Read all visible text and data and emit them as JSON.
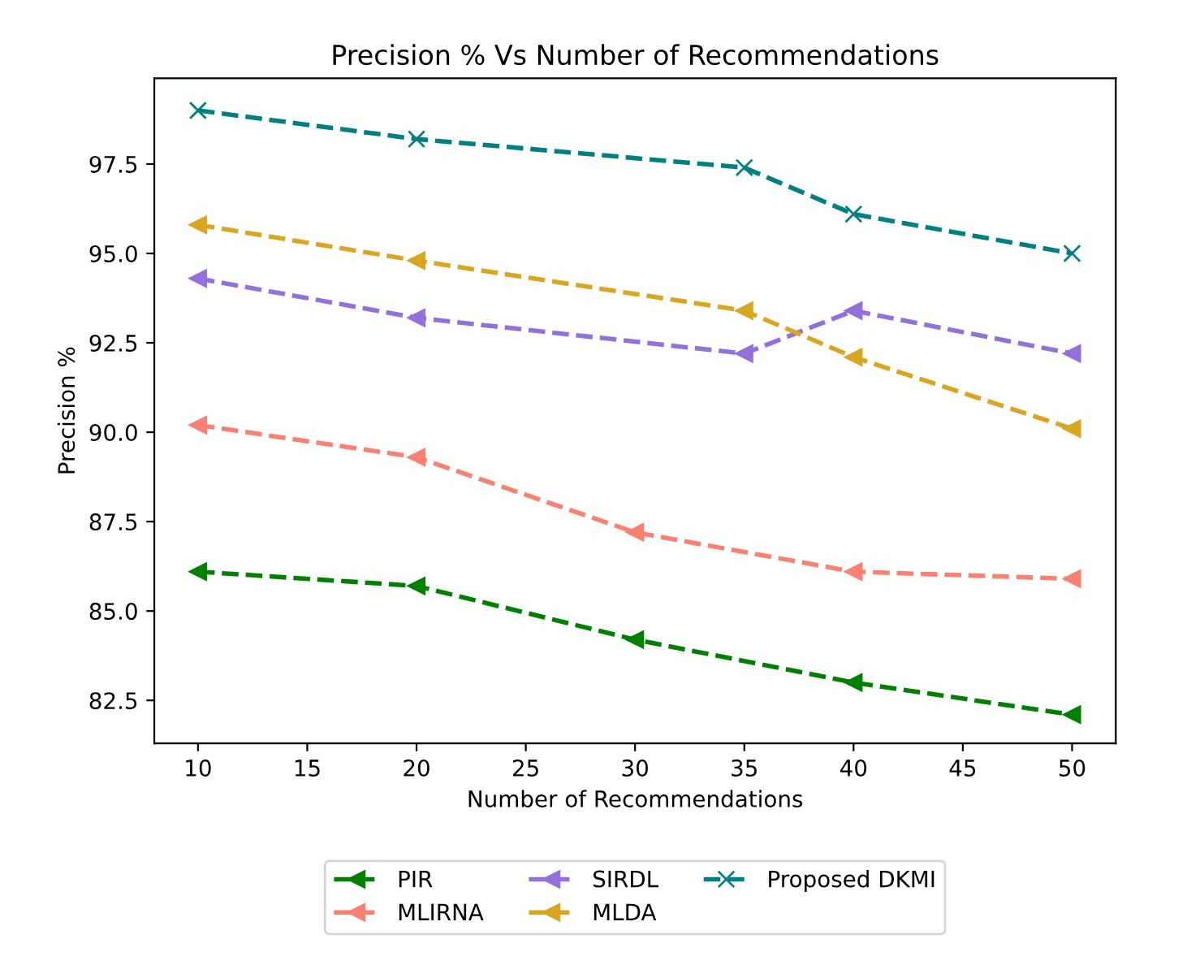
{
  "chart_data": {
    "type": "line",
    "title": "Precision % Vs Number of Recommendations",
    "xlabel": "Number of Recommendations",
    "ylabel": "Precision %",
    "xlim": [
      8,
      52
    ],
    "xticks": [
      10,
      15,
      20,
      25,
      30,
      35,
      40,
      45,
      50
    ],
    "ylim": [
      81.3,
      99.9
    ],
    "yticks": [
      82.5,
      {
        "value": 85,
        "label": "85.0"
      },
      87.5,
      {
        "value": 90,
        "label": "90.0"
      },
      92.5,
      {
        "value": 95,
        "label": "95.0"
      },
      97.5
    ],
    "grid": false,
    "legend": "bottom",
    "line_style": "dashed",
    "series": [
      {
        "name": "PIR",
        "color": "#008000",
        "marker": "triangle",
        "x": [
          10,
          20,
          30,
          40,
          50
        ],
        "values": [
          86.1,
          85.7,
          84.2,
          83.0,
          82.1
        ]
      },
      {
        "name": "MLIRNA",
        "color": "#fa8072",
        "marker": "triangle",
        "x": [
          10,
          20,
          30,
          40,
          50
        ],
        "values": [
          90.2,
          89.3,
          87.2,
          86.1,
          85.9
        ]
      },
      {
        "name": "SIRDL",
        "color": "#9370db",
        "marker": "triangle",
        "x": [
          10,
          20,
          35,
          40,
          50
        ],
        "values": [
          94.3,
          93.2,
          92.2,
          93.4,
          92.2
        ]
      },
      {
        "name": "MLDA",
        "color": "#daa520",
        "marker": "triangle",
        "x": [
          10,
          20,
          35,
          40,
          50
        ],
        "values": [
          95.8,
          94.8,
          93.4,
          92.1,
          90.1
        ]
      },
      {
        "name": "Proposed DKMI",
        "color": "#008080",
        "marker": "cross",
        "x": [
          10,
          20,
          35,
          40,
          50
        ],
        "values": [
          99.0,
          98.2,
          97.4,
          96.1,
          95.0
        ]
      }
    ]
  }
}
